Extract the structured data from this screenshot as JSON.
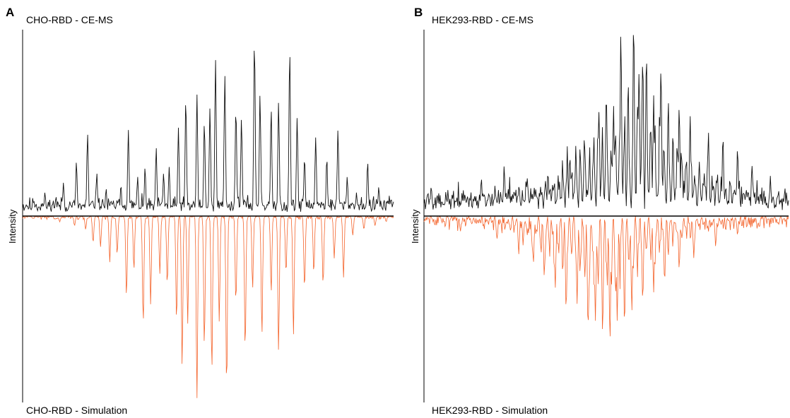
{
  "colors": {
    "measured": "#111111",
    "simulated": "#f4642c",
    "axis": "#000000"
  },
  "chart_data": [
    {
      "type": "line",
      "panel_label": "A",
      "title": "CHO-RBD - CE-MS",
      "bottom_title": "CHO-RBD - Simulation",
      "ylabel": "Intensity",
      "xlabel": "",
      "grid": false,
      "series": [
        {
          "name": "CHO-RBD - CE-MS",
          "direction": "up",
          "baseline": 0.04,
          "noise": 0.06,
          "seed": 11,
          "peaks": [
            [
              0.03,
              0.08
            ],
            [
              0.06,
              0.12
            ],
            [
              0.09,
              0.1
            ],
            [
              0.11,
              0.17
            ],
            [
              0.145,
              0.28
            ],
            [
              0.175,
              0.42
            ],
            [
              0.2,
              0.22
            ],
            [
              0.225,
              0.14
            ],
            [
              0.265,
              0.16
            ],
            [
              0.285,
              0.44
            ],
            [
              0.31,
              0.2
            ],
            [
              0.33,
              0.25
            ],
            [
              0.36,
              0.35
            ],
            [
              0.38,
              0.22
            ],
            [
              0.395,
              0.25
            ],
            [
              0.42,
              0.45
            ],
            [
              0.44,
              0.6
            ],
            [
              0.47,
              0.62
            ],
            [
              0.49,
              0.48
            ],
            [
              0.505,
              0.55
            ],
            [
              0.52,
              0.8
            ],
            [
              0.545,
              0.72
            ],
            [
              0.575,
              0.55
            ],
            [
              0.59,
              0.5
            ],
            [
              0.625,
              0.9
            ],
            [
              0.64,
              0.62
            ],
            [
              0.67,
              0.55
            ],
            [
              0.69,
              0.58
            ],
            [
              0.72,
              0.85
            ],
            [
              0.74,
              0.5
            ],
            [
              0.76,
              0.3
            ],
            [
              0.79,
              0.4
            ],
            [
              0.82,
              0.3
            ],
            [
              0.85,
              0.44
            ],
            [
              0.875,
              0.2
            ],
            [
              0.9,
              0.12
            ],
            [
              0.93,
              0.28
            ],
            [
              0.96,
              0.15
            ],
            [
              0.985,
              0.08
            ]
          ]
        },
        {
          "name": "CHO-RBD - Simulation",
          "direction": "down",
          "baseline": 0.0,
          "noise": 0.02,
          "seed": 29,
          "peaks": [
            [
              0.1,
              0.03
            ],
            [
              0.14,
              0.05
            ],
            [
              0.17,
              0.07
            ],
            [
              0.19,
              0.14
            ],
            [
              0.21,
              0.16
            ],
            [
              0.235,
              0.24
            ],
            [
              0.255,
              0.2
            ],
            [
              0.28,
              0.42
            ],
            [
              0.3,
              0.28
            ],
            [
              0.325,
              0.56
            ],
            [
              0.345,
              0.46
            ],
            [
              0.37,
              0.3
            ],
            [
              0.39,
              0.36
            ],
            [
              0.415,
              0.55
            ],
            [
              0.43,
              0.78
            ],
            [
              0.445,
              0.56
            ],
            [
              0.47,
              0.95
            ],
            [
              0.49,
              0.68
            ],
            [
              0.51,
              0.81
            ],
            [
              0.53,
              0.55
            ],
            [
              0.55,
              0.9
            ],
            [
              0.575,
              0.45
            ],
            [
              0.6,
              0.7
            ],
            [
              0.62,
              0.38
            ],
            [
              0.645,
              0.62
            ],
            [
              0.67,
              0.4
            ],
            [
              0.69,
              0.7
            ],
            [
              0.71,
              0.3
            ],
            [
              0.73,
              0.62
            ],
            [
              0.76,
              0.38
            ],
            [
              0.785,
              0.3
            ],
            [
              0.81,
              0.36
            ],
            [
              0.84,
              0.22
            ],
            [
              0.865,
              0.32
            ],
            [
              0.89,
              0.1
            ],
            [
              0.92,
              0.07
            ],
            [
              0.95,
              0.05
            ],
            [
              0.98,
              0.03
            ]
          ]
        }
      ]
    },
    {
      "type": "line",
      "panel_label": "B",
      "title": "HEK293-RBD - CE-MS",
      "bottom_title": "HEK293-RBD - Simulation",
      "ylabel": "Intensity",
      "xlabel": "",
      "grid": false,
      "series": [
        {
          "name": "HEK293-RBD - CE-MS",
          "direction": "up",
          "baseline": 0.05,
          "noise": 0.12,
          "seed": 5,
          "dense": true,
          "envelope": {
            "center": 0.58,
            "width": 0.2,
            "height": 0.52
          },
          "peaks": [
            [
              0.02,
              0.15
            ],
            [
              0.06,
              0.12
            ],
            [
              0.12,
              0.1
            ],
            [
              0.22,
              0.25
            ],
            [
              0.28,
              0.18
            ],
            [
              0.34,
              0.22
            ],
            [
              0.4,
              0.3
            ],
            [
              0.44,
              0.4
            ],
            [
              0.48,
              0.52
            ],
            [
              0.5,
              0.62
            ],
            [
              0.52,
              0.55
            ],
            [
              0.54,
              0.92
            ],
            [
              0.56,
              0.68
            ],
            [
              0.575,
              0.98
            ],
            [
              0.59,
              0.72
            ],
            [
              0.6,
              0.8
            ],
            [
              0.61,
              0.82
            ],
            [
              0.63,
              0.6
            ],
            [
              0.65,
              0.75
            ],
            [
              0.67,
              0.58
            ],
            [
              0.7,
              0.55
            ],
            [
              0.73,
              0.5
            ],
            [
              0.78,
              0.42
            ],
            [
              0.82,
              0.4
            ],
            [
              0.86,
              0.34
            ],
            [
              0.9,
              0.25
            ],
            [
              0.95,
              0.2
            ],
            [
              0.99,
              0.12
            ]
          ]
        },
        {
          "name": "HEK293-RBD - Simulation",
          "direction": "down",
          "baseline": 0.0,
          "noise": 0.08,
          "seed": 17,
          "dense": true,
          "envelope": {
            "center": 0.5,
            "width": 0.2,
            "height": 0.42
          },
          "peaks": [
            [
              0.03,
              0.05
            ],
            [
              0.1,
              0.08
            ],
            [
              0.2,
              0.12
            ],
            [
              0.26,
              0.2
            ],
            [
              0.3,
              0.25
            ],
            [
              0.33,
              0.32
            ],
            [
              0.36,
              0.38
            ],
            [
              0.39,
              0.5
            ],
            [
              0.42,
              0.46
            ],
            [
              0.45,
              0.6
            ],
            [
              0.47,
              0.55
            ],
            [
              0.49,
              0.62
            ],
            [
              0.51,
              0.66
            ],
            [
              0.53,
              0.55
            ],
            [
              0.55,
              0.58
            ],
            [
              0.57,
              0.5
            ],
            [
              0.6,
              0.45
            ],
            [
              0.63,
              0.4
            ],
            [
              0.66,
              0.35
            ],
            [
              0.7,
              0.28
            ],
            [
              0.74,
              0.22
            ],
            [
              0.8,
              0.16
            ],
            [
              0.86,
              0.1
            ],
            [
              0.92,
              0.06
            ],
            [
              0.97,
              0.04
            ]
          ]
        }
      ]
    }
  ]
}
